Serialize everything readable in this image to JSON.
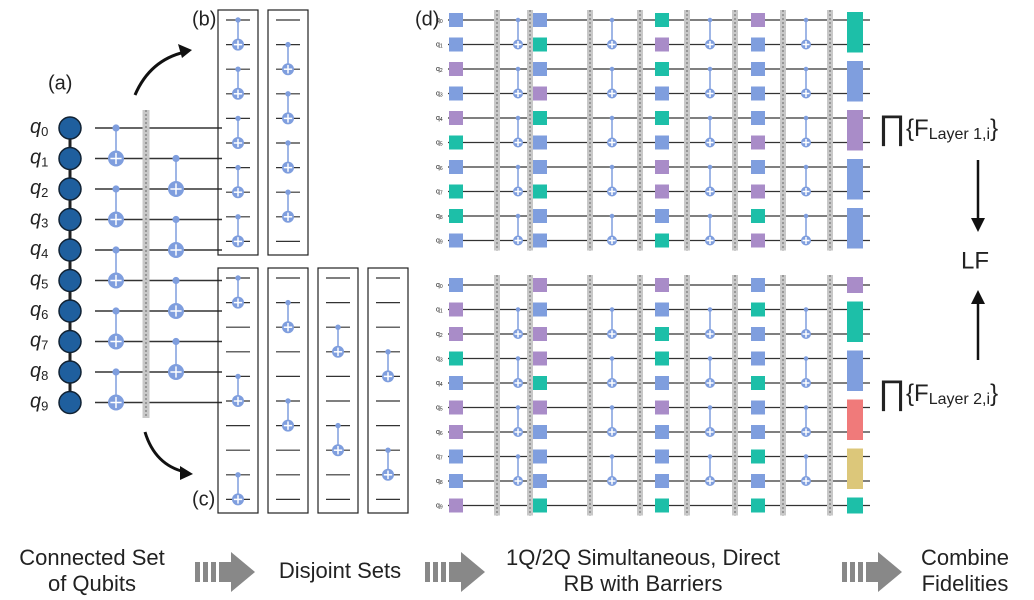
{
  "panels": {
    "a": "(a)",
    "b": "(b)",
    "c": "(c)",
    "d": "(d)"
  },
  "qubits": [
    {
      "symbol": "q",
      "index": "0"
    },
    {
      "symbol": "q",
      "index": "1"
    },
    {
      "symbol": "q",
      "index": "2"
    },
    {
      "symbol": "q",
      "index": "3"
    },
    {
      "symbol": "q",
      "index": "4"
    },
    {
      "symbol": "q",
      "index": "5"
    },
    {
      "symbol": "q",
      "index": "6"
    },
    {
      "symbol": "q",
      "index": "7"
    },
    {
      "symbol": "q",
      "index": "8"
    },
    {
      "symbol": "q",
      "index": "9"
    }
  ],
  "fidelities": [
    {
      "product": "∏",
      "open": "{F",
      "subscript": "Layer 1,i",
      "close": "}"
    },
    {
      "product": "∏",
      "open": "{F",
      "subscript": "Layer 2,i",
      "close": "}"
    }
  ],
  "result": "LF",
  "workflow": [
    {
      "lines": [
        "Connected Set",
        "of Qubits"
      ]
    },
    {
      "lines": [
        "Disjoint Sets"
      ]
    },
    {
      "lines": [
        "1Q/2Q Simultaneous, Direct",
        "RB with Barriers"
      ]
    },
    {
      "lines": [
        "Combine",
        "Fidelities"
      ]
    }
  ]
}
